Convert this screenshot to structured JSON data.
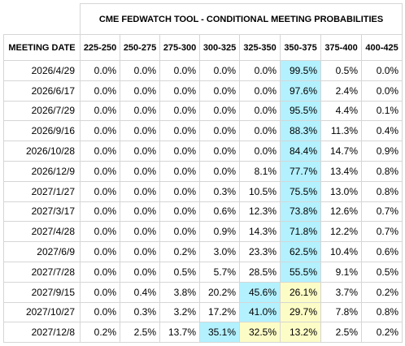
{
  "chart_data": {
    "type": "table",
    "title": "CME FEDWATCH TOOL - CONDITIONAL MEETING PROBABILITIES",
    "row_header_label": "MEETING DATE",
    "columns": [
      "225-250",
      "250-275",
      "275-300",
      "300-325",
      "325-350",
      "350-375",
      "375-400",
      "400-425"
    ],
    "rows": [
      {
        "date": "2026/4/29",
        "values": [
          "0.0%",
          "0.0%",
          "0.0%",
          "0.0%",
          "0.0%",
          "99.5%",
          "0.5%",
          "0.0%"
        ],
        "highlight": {
          "5": "blue"
        }
      },
      {
        "date": "2026/6/17",
        "values": [
          "0.0%",
          "0.0%",
          "0.0%",
          "0.0%",
          "0.0%",
          "97.6%",
          "2.4%",
          "0.0%"
        ],
        "highlight": {
          "5": "blue"
        }
      },
      {
        "date": "2026/7/29",
        "values": [
          "0.0%",
          "0.0%",
          "0.0%",
          "0.0%",
          "0.0%",
          "95.5%",
          "4.4%",
          "0.1%"
        ],
        "highlight": {
          "5": "blue"
        }
      },
      {
        "date": "2026/9/16",
        "values": [
          "0.0%",
          "0.0%",
          "0.0%",
          "0.0%",
          "0.0%",
          "88.3%",
          "11.3%",
          "0.4%"
        ],
        "highlight": {
          "5": "blue"
        }
      },
      {
        "date": "2026/10/28",
        "values": [
          "0.0%",
          "0.0%",
          "0.0%",
          "0.0%",
          "0.0%",
          "84.4%",
          "14.7%",
          "0.9%"
        ],
        "highlight": {
          "5": "blue"
        }
      },
      {
        "date": "2026/12/9",
        "values": [
          "0.0%",
          "0.0%",
          "0.0%",
          "0.0%",
          "8.1%",
          "77.7%",
          "13.4%",
          "0.8%"
        ],
        "highlight": {
          "5": "blue"
        }
      },
      {
        "date": "2027/1/27",
        "values": [
          "0.0%",
          "0.0%",
          "0.0%",
          "0.3%",
          "10.5%",
          "75.5%",
          "13.0%",
          "0.8%"
        ],
        "highlight": {
          "5": "blue"
        }
      },
      {
        "date": "2027/3/17",
        "values": [
          "0.0%",
          "0.0%",
          "0.0%",
          "0.6%",
          "12.3%",
          "73.8%",
          "12.6%",
          "0.7%"
        ],
        "highlight": {
          "5": "blue"
        }
      },
      {
        "date": "2027/4/28",
        "values": [
          "0.0%",
          "0.0%",
          "0.0%",
          "0.9%",
          "14.3%",
          "71.8%",
          "12.2%",
          "0.7%"
        ],
        "highlight": {
          "5": "blue"
        }
      },
      {
        "date": "2027/6/9",
        "values": [
          "0.0%",
          "0.0%",
          "0.2%",
          "3.0%",
          "23.3%",
          "62.5%",
          "10.4%",
          "0.6%"
        ],
        "highlight": {
          "5": "blue"
        }
      },
      {
        "date": "2027/7/28",
        "values": [
          "0.0%",
          "0.0%",
          "0.5%",
          "5.7%",
          "28.5%",
          "55.5%",
          "9.1%",
          "0.5%"
        ],
        "highlight": {
          "5": "blue"
        }
      },
      {
        "date": "2027/9/15",
        "values": [
          "0.0%",
          "0.4%",
          "3.8%",
          "20.2%",
          "45.6%",
          "26.1%",
          "3.7%",
          "0.2%"
        ],
        "highlight": {
          "4": "blue",
          "5": "yellow"
        }
      },
      {
        "date": "2027/10/27",
        "values": [
          "0.0%",
          "0.3%",
          "3.2%",
          "17.2%",
          "41.0%",
          "29.7%",
          "7.8%",
          "0.8%"
        ],
        "highlight": {
          "4": "blue",
          "5": "yellow"
        }
      },
      {
        "date": "2027/12/8",
        "values": [
          "0.2%",
          "2.5%",
          "13.7%",
          "35.1%",
          "32.5%",
          "13.2%",
          "2.5%",
          "0.2%"
        ],
        "highlight": {
          "3": "blue",
          "4": "yellow",
          "5": "yellow"
        }
      }
    ],
    "highlight_colors": {
      "blue": "#b3f1ff",
      "yellow": "#fcfcc6"
    },
    "border_color": "#d6d6d6"
  }
}
